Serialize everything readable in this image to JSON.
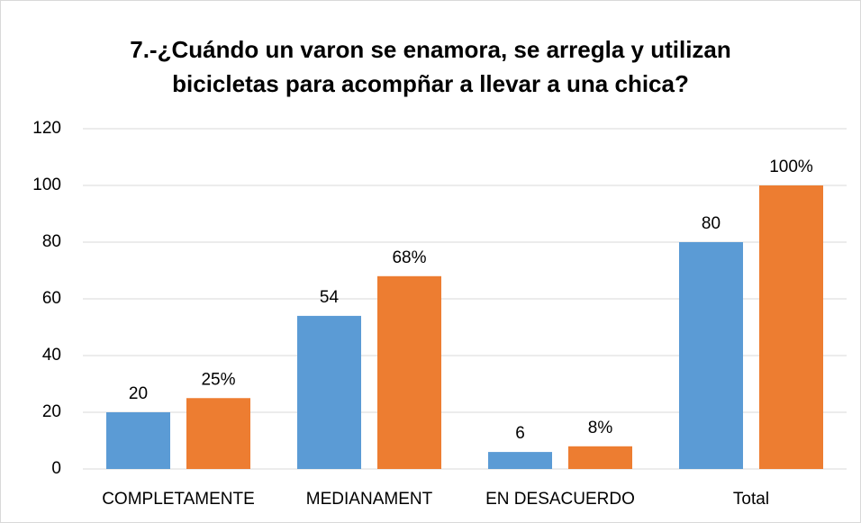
{
  "chart_data": {
    "type": "bar",
    "title": "7.-¿Cuándo un varon se enamora, se arregla y utilizan bicicletas para acompñar a llevar a una chica?",
    "categories": [
      "COMPLETAMENTE",
      "MEDIANAMENT",
      "EN DESACUERDO",
      "Total"
    ],
    "series": [
      {
        "color": "#5b9bd5",
        "values": [
          20,
          54,
          6,
          80
        ]
      },
      {
        "color": "#ed7d31",
        "values": [
          25,
          68,
          8,
          100
        ],
        "value_labels": [
          "25%",
          "68%",
          "8%",
          "100%"
        ]
      }
    ],
    "ylim": [
      0,
      120
    ],
    "yticks": [
      0,
      20,
      40,
      60,
      80,
      100,
      120
    ],
    "grid": true
  }
}
